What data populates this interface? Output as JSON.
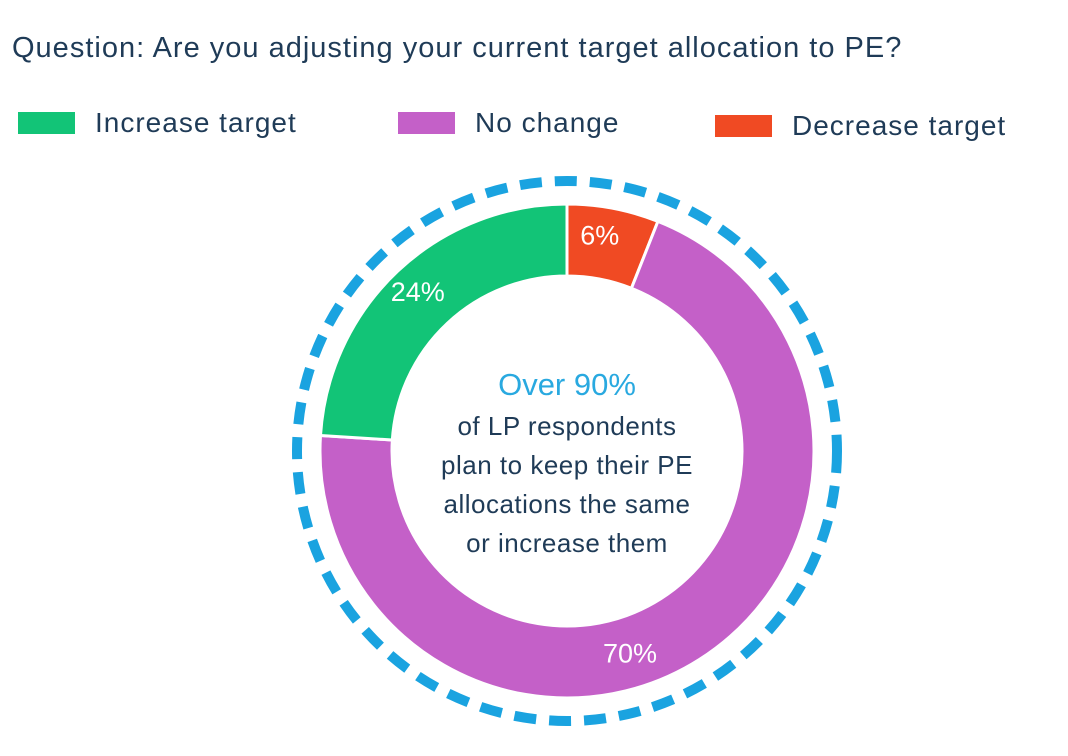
{
  "chart_data": {
    "type": "pie",
    "title": "Question: Are you adjusting your current target allocation to PE?",
    "series": [
      {
        "name": "Decrease target",
        "value": 6,
        "label": "6%",
        "color": "#f04a23"
      },
      {
        "name": "No change",
        "value": 70,
        "label": "70%",
        "color": "#c460c8"
      },
      {
        "name": "Increase target",
        "value": 24,
        "label": "24%",
        "color": "#12c477"
      }
    ],
    "legend": [
      {
        "name": "Increase target",
        "color": "#12c477"
      },
      {
        "name": "No change",
        "color": "#c460c8"
      },
      {
        "name": "Decrease target",
        "color": "#f04a23"
      }
    ],
    "center_annotation": {
      "headline": "Over 90%",
      "lines": [
        "of LP respondents",
        "plan to keep their PE",
        "allocations the same",
        "or increase them"
      ]
    },
    "ring_color": "#1aa3e0",
    "legend_placement": "top"
  }
}
